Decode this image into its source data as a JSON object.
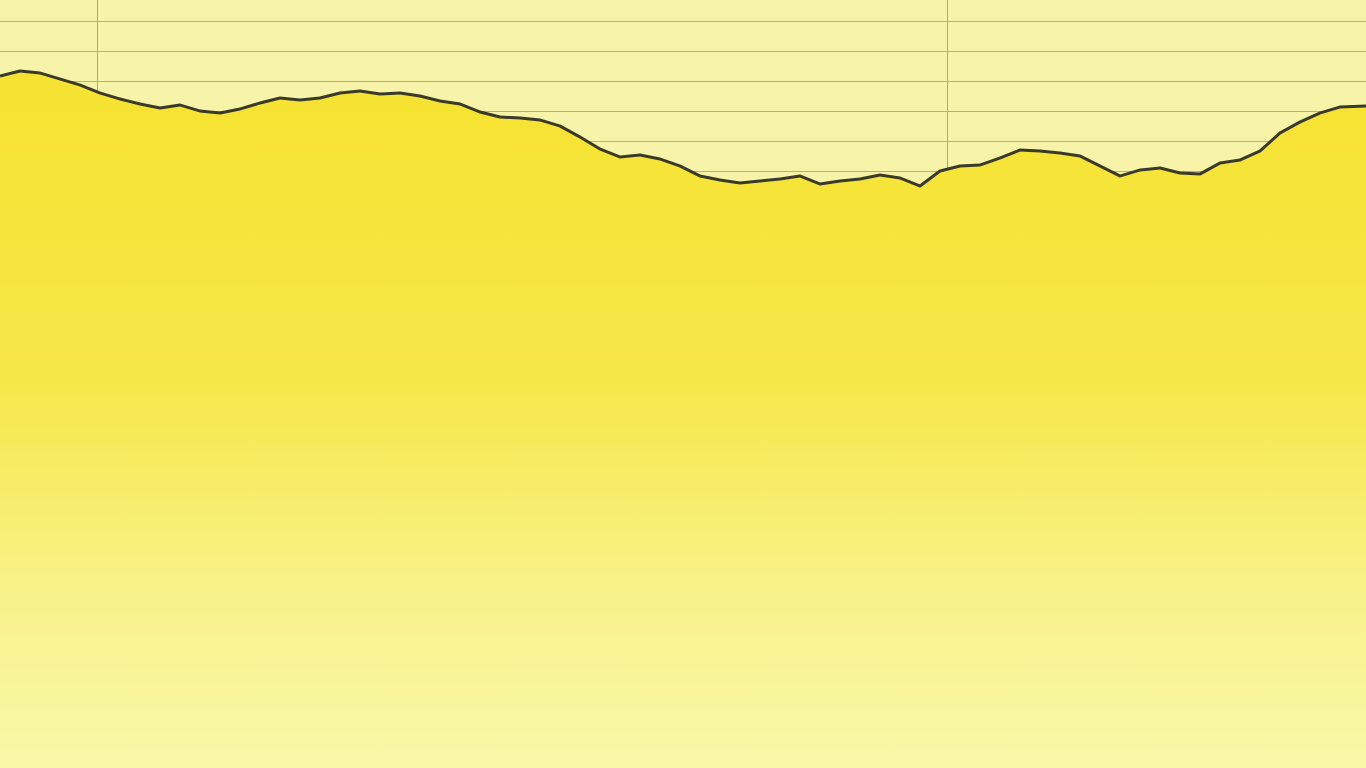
{
  "scene": {
    "description_colors": {
      "top_paper": "#f7f3a8",
      "rule_line": "#8ab8cf",
      "margin_line": "#e38a8a",
      "torn_paper_top": "#f6e22f",
      "torn_paper_bottom": "#f8f8a8",
      "torn_edge": "#3a3a2a"
    }
  }
}
